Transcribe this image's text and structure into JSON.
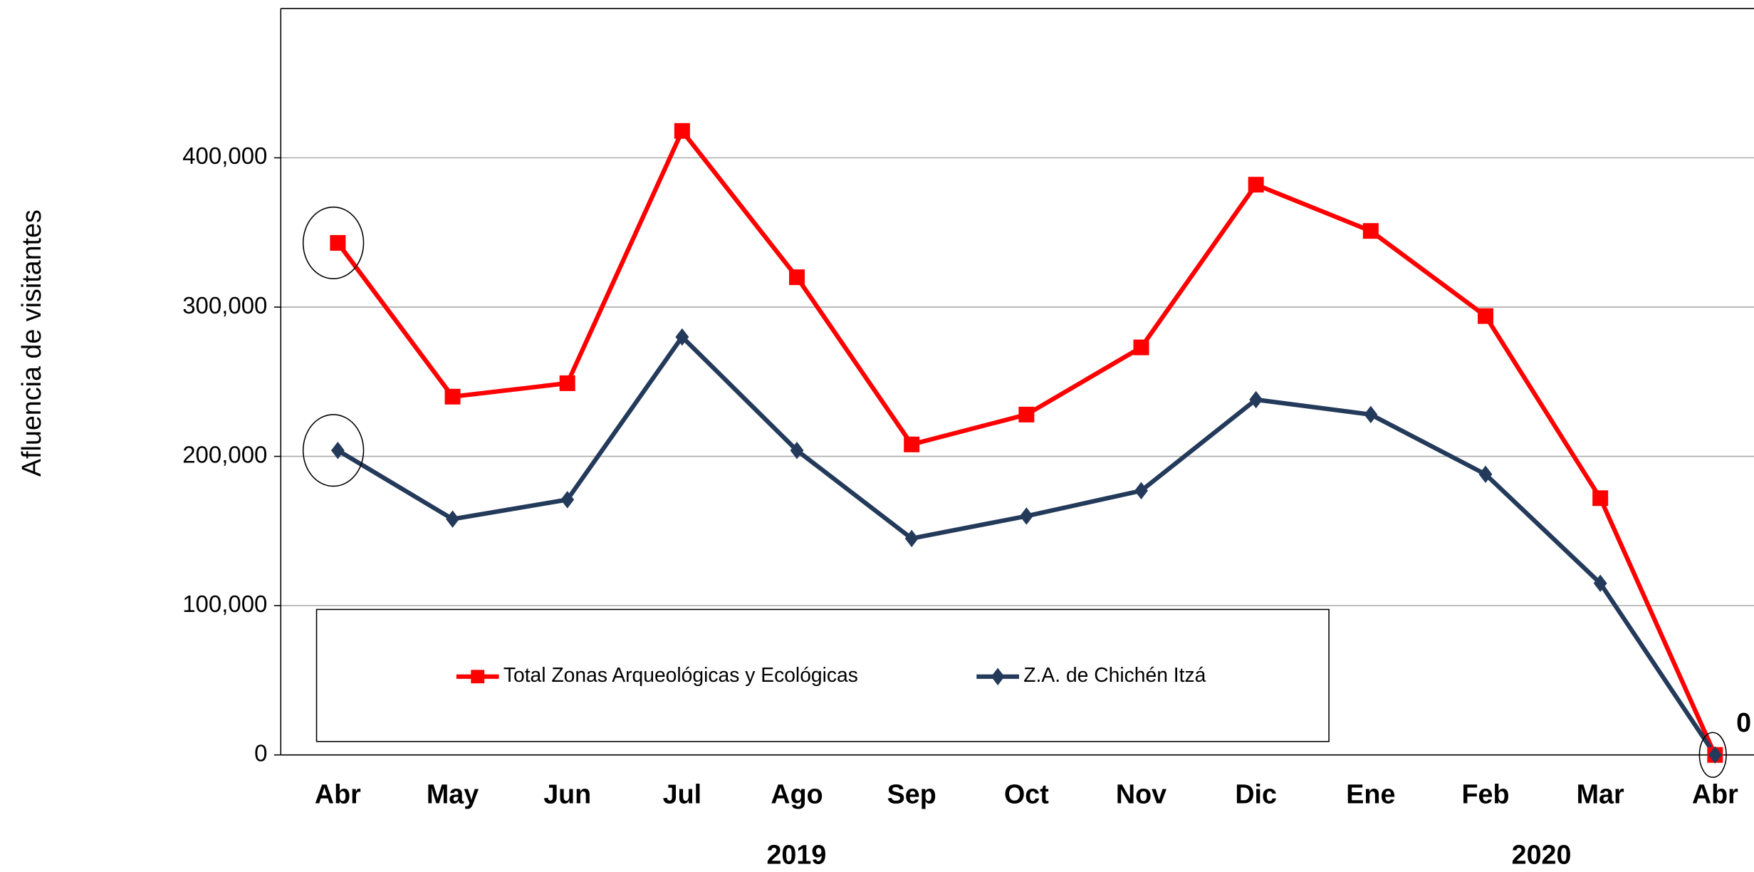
{
  "chart_data": {
    "type": "line",
    "y_label": "Afluencia de visitantes",
    "categories": [
      "Abr",
      "May",
      "Jun",
      "Jul",
      "Ago",
      "Sep",
      "Oct",
      "Nov",
      "Dic",
      "Ene",
      "Feb",
      "Mar",
      "Abr"
    ],
    "year_labels": [
      "2019",
      "2020"
    ],
    "series": [
      {
        "name": "Total Zonas Arqueológicas y Ecológicas",
        "color": "#ff0000",
        "marker": "square",
        "values": [
          343000,
          240000,
          249000,
          418000,
          320000,
          208000,
          228000,
          273000,
          382000,
          351000,
          294000,
          172000,
          0
        ]
      },
      {
        "name": "Z.A. de Chichén Itzá",
        "color": "#243a5a",
        "marker": "diamond",
        "values": [
          204000,
          158000,
          171000,
          280000,
          204000,
          145000,
          160000,
          177000,
          238000,
          228000,
          188000,
          115000,
          0
        ]
      }
    ],
    "ylim": [
      0,
      500000
    ],
    "yticks": [
      0,
      {
        "value": 100000,
        "label": "100,000"
      },
      {
        "value": 200000,
        "label": "200,000"
      },
      {
        "value": 300000,
        "label": "300,000"
      },
      {
        "value": 400000,
        "label": "400,000"
      }
    ],
    "grid": true
  }
}
